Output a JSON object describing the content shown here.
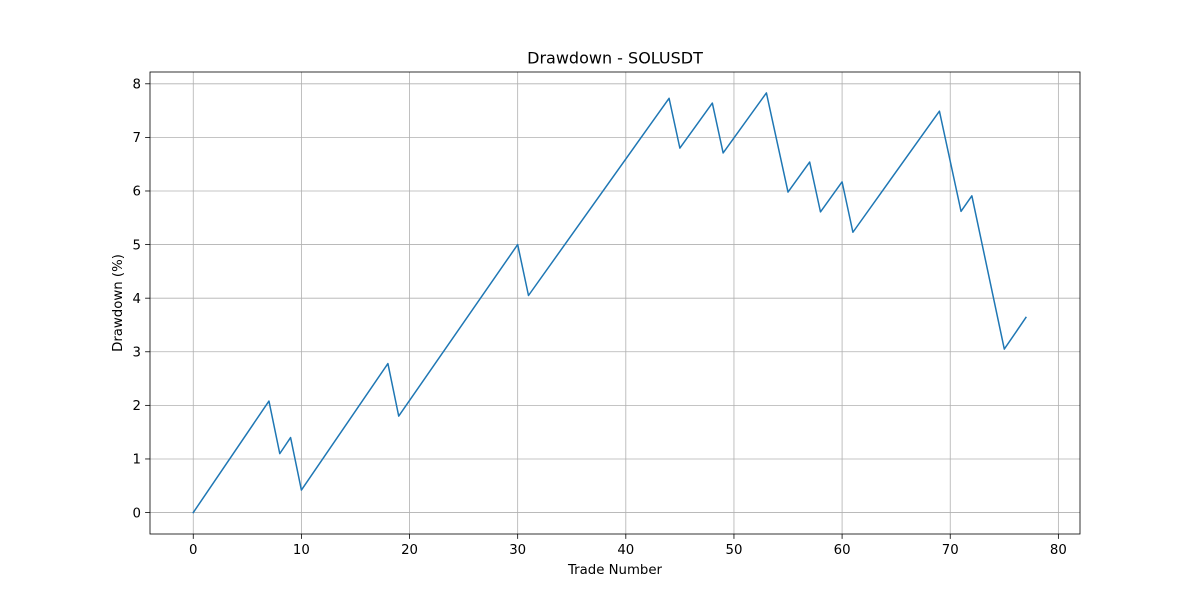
{
  "chart_data": {
    "type": "line",
    "title": "Drawdown - SOLUSDT",
    "xlabel": "Trade Number",
    "ylabel": "Drawdown (%)",
    "xlim": [
      -4,
      82
    ],
    "ylim": [
      -0.4,
      8.22
    ],
    "xticks": [
      0,
      10,
      20,
      30,
      40,
      50,
      60,
      70,
      80
    ],
    "yticks": [
      0,
      1,
      2,
      3,
      4,
      5,
      6,
      7,
      8
    ],
    "grid": true,
    "series": [
      {
        "color": "#1f77b4",
        "x": [
          0,
          7,
          8,
          9,
          10,
          18,
          19,
          30,
          31,
          44,
          45,
          48,
          49,
          53,
          55,
          57,
          58,
          60,
          61,
          69,
          71,
          72,
          75,
          77
        ],
        "y": [
          0,
          2.08,
          1.1,
          1.4,
          0.42,
          2.78,
          1.8,
          5.0,
          4.05,
          7.73,
          6.8,
          7.64,
          6.71,
          7.83,
          5.98,
          6.54,
          5.61,
          6.17,
          5.23,
          7.49,
          5.62,
          5.91,
          3.05,
          3.64
        ]
      }
    ]
  }
}
